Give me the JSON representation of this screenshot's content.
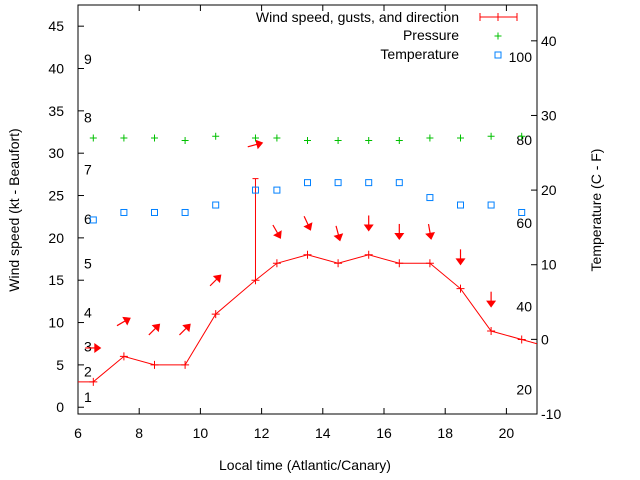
{
  "chart_data": {
    "type": "line",
    "xlabel": "Local time (Atlantic/Canary)",
    "ylabel": "Wind speed (kt - Beaufort)",
    "y2label": "Temperature (C - F)",
    "xlim": [
      6,
      21
    ],
    "ylim": [
      -0.8,
      47.5
    ],
    "y2lim": [
      -10,
      44.8
    ],
    "x_ticks": [
      6,
      8,
      10,
      12,
      14,
      16,
      18,
      20
    ],
    "y_ticks": [
      0,
      5,
      10,
      15,
      20,
      25,
      30,
      35,
      40,
      45
    ],
    "y2_ticks": [
      -10,
      0,
      10,
      20,
      30,
      40
    ],
    "beaufort_labels": [
      {
        "label": "1",
        "kt": 1.2
      },
      {
        "label": "2",
        "kt": 4.2
      },
      {
        "label": "3",
        "kt": 7.2
      },
      {
        "label": "4",
        "kt": 11.2
      },
      {
        "label": "5",
        "kt": 17.0
      },
      {
        "label": "6",
        "kt": 22.2
      },
      {
        "label": "7",
        "kt": 28.1
      },
      {
        "label": "8",
        "kt": 34.2
      },
      {
        "label": "9",
        "kt": 41.1
      }
    ],
    "fahrenheit_labels": [
      {
        "label": "20",
        "c": -6.7
      },
      {
        "label": "40",
        "c": 4.4
      },
      {
        "label": "60",
        "c": 15.6
      },
      {
        "label": "80",
        "c": 26.7
      },
      {
        "label": "100",
        "c": 37.8
      }
    ],
    "legend": [
      "Wind speed, gusts, and direction",
      "Pressure",
      "Temperature"
    ],
    "legend_position": "top-right",
    "colors": {
      "wind": "#ff0000",
      "pressure": "#00c000",
      "temperature": "#0080ff"
    },
    "series": [
      {
        "name": "Wind speed, gusts, and direction",
        "x": [
          6.0,
          6.5,
          7.5,
          8.5,
          9.5,
          10.5,
          11.8,
          12.5,
          13.5,
          14.5,
          15.5,
          16.5,
          17.5,
          18.5,
          19.5,
          20.5,
          21.0
        ],
        "y": [
          3,
          3,
          6,
          5,
          5,
          11,
          15,
          17,
          18,
          17,
          18,
          17,
          17,
          14,
          9,
          8,
          7.5
        ],
        "markers": [
          false,
          true,
          true,
          true,
          true,
          true,
          true,
          true,
          true,
          true,
          true,
          true,
          true,
          true,
          true,
          true,
          false
        ],
        "gusts": [
          {
            "x": 11.8,
            "y": 27
          }
        ]
      },
      {
        "name": "Pressure",
        "x": [
          6.5,
          7.5,
          8.5,
          9.5,
          10.5,
          11.8,
          12.5,
          13.5,
          14.5,
          15.5,
          16.5,
          17.5,
          18.5,
          19.5,
          20.5
        ],
        "y": [
          31.8,
          31.8,
          31.8,
          31.5,
          32.0,
          31.8,
          31.8,
          31.5,
          31.5,
          31.5,
          31.5,
          31.8,
          31.8,
          32.0,
          32.0
        ]
      },
      {
        "name": "Temperature",
        "axis": "right",
        "x": [
          6.5,
          7.5,
          8.5,
          9.5,
          10.5,
          11.8,
          12.5,
          13.5,
          14.5,
          15.5,
          16.5,
          17.5,
          18.5,
          19.5,
          20.5
        ],
        "y": [
          16,
          17,
          17,
          17,
          18,
          20,
          20,
          21,
          21,
          21,
          21,
          19,
          18,
          18,
          17
        ]
      }
    ],
    "wind_direction_arrows": {
      "x": [
        6.5,
        7.5,
        8.5,
        9.5,
        10.5,
        11.8,
        12.5,
        13.5,
        14.5,
        15.5,
        16.5,
        17.5,
        18.5,
        19.5
      ],
      "y": [
        7.0,
        10.1,
        9.2,
        9.2,
        15.0,
        31.0,
        20.7,
        21.7,
        20.5,
        21.7,
        20.7,
        20.7,
        17.7,
        12.7
      ],
      "pointing_deg": [
        0,
        30,
        45,
        45,
        45,
        15,
        -60,
        -65,
        -75,
        -90,
        -90,
        -80,
        -90,
        -90
      ]
    }
  }
}
